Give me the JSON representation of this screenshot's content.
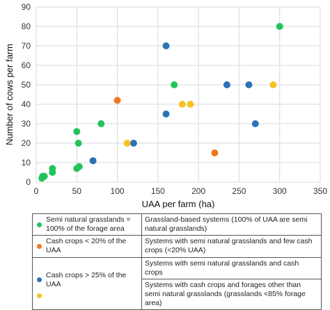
{
  "chart_data": {
    "type": "scatter",
    "xlabel": "UAA per farm (ha)",
    "ylabel": "Number of cows per farm",
    "xlim": [
      0,
      350
    ],
    "ylim": [
      0,
      90
    ],
    "xticks": [
      0,
      50,
      100,
      150,
      200,
      250,
      300,
      350
    ],
    "yticks": [
      0,
      10,
      20,
      30,
      40,
      50,
      60,
      70,
      80,
      90
    ],
    "grid": true,
    "series": [
      {
        "name": "Semi natural grasslands = 100% of the forage area",
        "color": "#22c45a",
        "points": [
          [
            7,
            2
          ],
          [
            8,
            3
          ],
          [
            10,
            3
          ],
          [
            20,
            5
          ],
          [
            20,
            7
          ],
          [
            50,
            7
          ],
          [
            53,
            8
          ],
          [
            50,
            26
          ],
          [
            52,
            20
          ],
          [
            80,
            30
          ],
          [
            170,
            50
          ],
          [
            300,
            80
          ]
        ]
      },
      {
        "name": "Cash crops < 20% of the UAA",
        "color": "#f07820",
        "points": [
          [
            100,
            42
          ],
          [
            220,
            15
          ]
        ]
      },
      {
        "name": "Cash crops > 25% of the UAA",
        "color": "#2a72b8",
        "points": [
          [
            70,
            11
          ],
          [
            120,
            20
          ],
          [
            160,
            35
          ],
          [
            160,
            70
          ],
          [
            235,
            50
          ],
          [
            262,
            50
          ],
          [
            270,
            30
          ]
        ]
      },
      {
        "name": "",
        "color": "#f5c220",
        "points": [
          [
            112,
            20
          ],
          [
            180,
            40
          ],
          [
            190,
            40
          ],
          [
            292,
            50
          ]
        ]
      }
    ]
  },
  "legend": {
    "rows": [
      {
        "icon": "green-dot-icon",
        "color": "#22c45a",
        "label": "Semi natural grasslands = 100% of the forage area",
        "description": "Grassland-based systems (100% of UAA are semi natural grasslands)"
      },
      {
        "icon": "orange-dot-icon",
        "color": "#f07820",
        "label": "Cash crops < 20% of the UAA",
        "description": "Systems with semi natural grasslands and few cash crops (<20% UAA)"
      },
      {
        "icon": "blue-dot-icon",
        "color": "#2a72b8",
        "label": "Cash crops > 25% of the UAA",
        "description": "Systems with semi natural grasslands and cash crops"
      },
      {
        "icon": "yellow-dot-icon",
        "color": "#f5c220",
        "label": "",
        "description": "Systems with cash crops and forages other than semi natural grasslands (grasslands <85% forage area)"
      }
    ]
  }
}
